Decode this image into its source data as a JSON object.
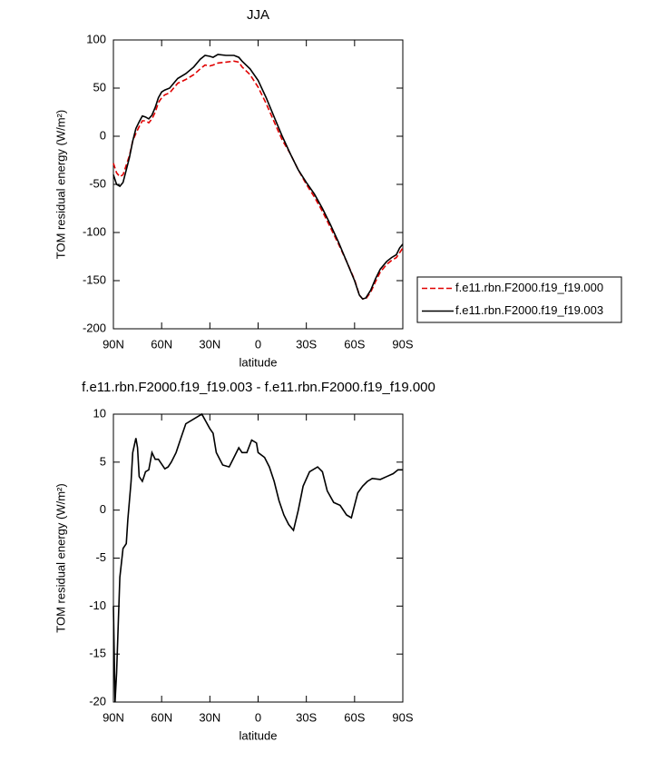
{
  "chart_data": [
    {
      "type": "line",
      "title": "JJA",
      "xlabel": "latitude",
      "ylabel": "TOM residual energy (W/m²)",
      "x": [
        90,
        88,
        86,
        84,
        82,
        80,
        78,
        76,
        74,
        72,
        70,
        68,
        66,
        64,
        62,
        60,
        58,
        55,
        52,
        50,
        45,
        40,
        36,
        33,
        30,
        28,
        25,
        20,
        15,
        12,
        10,
        5,
        0,
        -5,
        -10,
        -15,
        -20,
        -25,
        -30,
        -35,
        -40,
        -45,
        -50,
        -55,
        -60,
        -63,
        -65,
        -67,
        -70,
        -73,
        -76,
        -80,
        -83,
        -86,
        -88,
        -90
      ],
      "series": [
        {
          "name": "f.e11.rbn.F2000.f19_f19.000",
          "color": "#e00000",
          "line_style": "dashed",
          "values": [
            -28,
            -38,
            -42,
            -40,
            -30,
            -20,
            -5,
            3,
            10,
            16,
            16,
            14,
            18,
            25,
            35,
            40,
            43,
            45,
            51,
            55,
            59,
            64,
            70,
            74,
            73,
            74,
            76,
            77,
            78,
            77,
            72,
            64,
            51,
            34,
            15,
            -4,
            -18,
            -35,
            -50,
            -63,
            -78,
            -95,
            -112,
            -130,
            -149,
            -165,
            -169,
            -169,
            -162,
            -151,
            -141,
            -133,
            -129,
            -126,
            -121,
            -116
          ]
        },
        {
          "name": "f.e11.rbn.F2000.f19_f19.003",
          "color": "#000000",
          "line_style": "solid",
          "values": [
            -40,
            -50,
            -52,
            -48,
            -35,
            -22,
            -5,
            8,
            15,
            21,
            20,
            18,
            22,
            30,
            40,
            46,
            48,
            50,
            56,
            60,
            65,
            72,
            80,
            84,
            83,
            82,
            85,
            84,
            84,
            82,
            78,
            70,
            58,
            40,
            20,
            0,
            -18,
            -35,
            -48,
            -60,
            -75,
            -92,
            -110,
            -130,
            -150,
            -165,
            -169,
            -168,
            -160,
            -148,
            -138,
            -130,
            -126,
            -123,
            -116,
            -112
          ]
        }
      ],
      "xlim": [
        90,
        -90
      ],
      "xticks": [
        {
          "value": 90,
          "label": "90N"
        },
        {
          "value": 60,
          "label": "60N"
        },
        {
          "value": 30,
          "label": "30N"
        },
        {
          "value": 0,
          "label": "0"
        },
        {
          "value": -30,
          "label": "30S"
        },
        {
          "value": -60,
          "label": "60S"
        },
        {
          "value": -90,
          "label": "90S"
        }
      ],
      "ylim": [
        -200,
        100
      ],
      "yticks": [
        -200,
        -150,
        -100,
        -50,
        0,
        50,
        100
      ],
      "legend": "right"
    },
    {
      "type": "line",
      "title": "f.e11.rbn.F2000.f19_f19.003 - f.e11.rbn.F2000.f19_f19.000",
      "xlabel": "latitude",
      "ylabel": "TOM residual energy (W/m²)",
      "x": [
        90,
        89,
        88,
        86,
        84,
        82,
        81,
        79,
        78,
        76,
        75,
        74,
        72,
        71,
        70,
        68,
        66,
        64,
        62,
        58,
        56,
        54,
        51,
        48,
        45,
        40,
        35,
        30,
        28,
        26,
        22,
        18,
        15,
        12,
        10,
        7,
        4,
        1,
        0,
        -4,
        -7,
        -10,
        -13,
        -16,
        -19,
        -22,
        -25,
        -28,
        -32,
        -37,
        -40,
        -43,
        -47,
        -51,
        -55,
        -58,
        -60,
        -62,
        -65,
        -68,
        -71,
        -76,
        -80,
        -84,
        -87,
        -90
      ],
      "values": [
        -10,
        -20,
        -17,
        -7,
        -4,
        -3.5,
        -1,
        3,
        6,
        7.5,
        6.5,
        3.5,
        3,
        3.5,
        4,
        4.2,
        6,
        5.3,
        5.3,
        4.3,
        4.5,
        5,
        6,
        7.5,
        9,
        9.5,
        10,
        8.5,
        8,
        6,
        4.7,
        4.5,
        5.5,
        6.5,
        6,
        6,
        7.3,
        7,
        6,
        5.5,
        4.5,
        3,
        1,
        -0.5,
        -1.5,
        -2.1,
        0,
        2.5,
        4,
        4.5,
        4,
        2,
        0.8,
        0.5,
        -0.5,
        -0.8,
        0.5,
        1.8,
        2.5,
        3,
        3.3,
        3.2,
        3.5,
        3.8,
        4.2,
        4.2
      ],
      "color": "#000000",
      "xlim": [
        90,
        -90
      ],
      "xticks": [
        {
          "value": 90,
          "label": "90N"
        },
        {
          "value": 60,
          "label": "60N"
        },
        {
          "value": 30,
          "label": "30N"
        },
        {
          "value": 0,
          "label": "0"
        },
        {
          "value": -30,
          "label": "30S"
        },
        {
          "value": -60,
          "label": "60S"
        },
        {
          "value": -90,
          "label": "90S"
        }
      ],
      "ylim": [
        -20,
        10
      ],
      "yticks": [
        -20,
        -15,
        -10,
        -5,
        0,
        5,
        10
      ]
    }
  ]
}
